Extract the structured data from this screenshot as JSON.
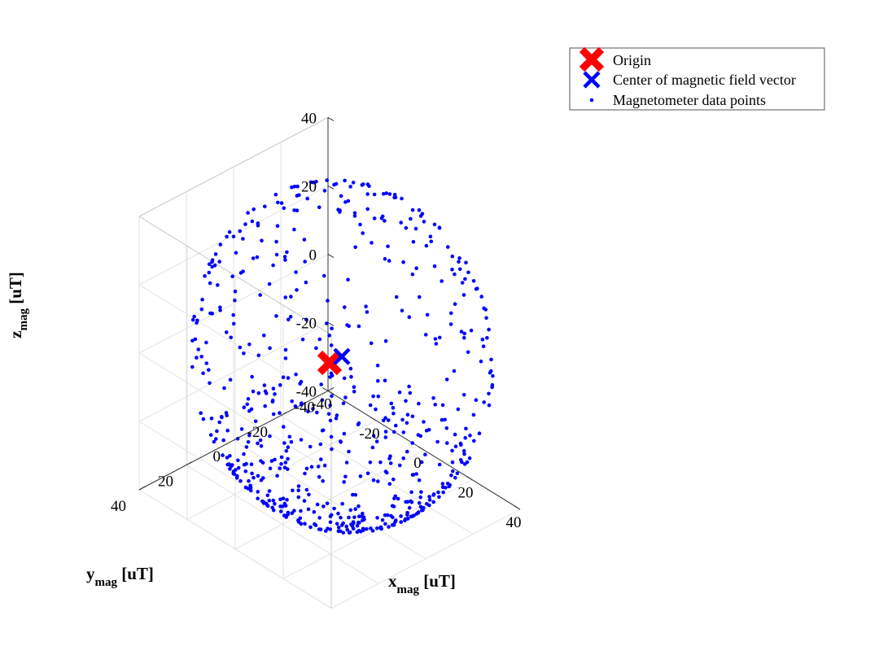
{
  "chart_data": {
    "type": "scatter3d",
    "title": "",
    "xlabel": {
      "main": "x",
      "sub": "mag",
      "unit": " [uT]"
    },
    "ylabel": {
      "main": "y",
      "sub": "mag",
      "unit": " [uT]"
    },
    "zlabel": {
      "main": "z",
      "sub": "mag",
      "unit": " [uT]"
    },
    "xlim": [
      -40,
      40
    ],
    "ylim": [
      -40,
      40
    ],
    "zlim": [
      -40,
      40
    ],
    "xticks": [
      "-40",
      "-20",
      "0",
      "20",
      "40"
    ],
    "yticks": [
      "-40",
      "-20",
      "0",
      "20",
      "40"
    ],
    "zticks": [
      "-40",
      "-20",
      "0",
      "20",
      "40"
    ],
    "grid": true,
    "legend_position": "top-right-outside",
    "series": [
      {
        "name": "Origin",
        "marker": "x",
        "color": "#ff0000",
        "points": [
          [
            0,
            0,
            0
          ]
        ]
      },
      {
        "name": "Center of magnetic field vector",
        "marker": "x",
        "color": "#0000ff",
        "points": [
          [
            10,
            5,
            8
          ]
        ]
      },
      {
        "name": "Magnetometer data points",
        "marker": "dot",
        "color": "#0000ff",
        "generator": "sphere-surface",
        "center": [
          10,
          5,
          8
        ],
        "radius": 45,
        "count": 650,
        "dense_region": "bottom"
      }
    ]
  }
}
